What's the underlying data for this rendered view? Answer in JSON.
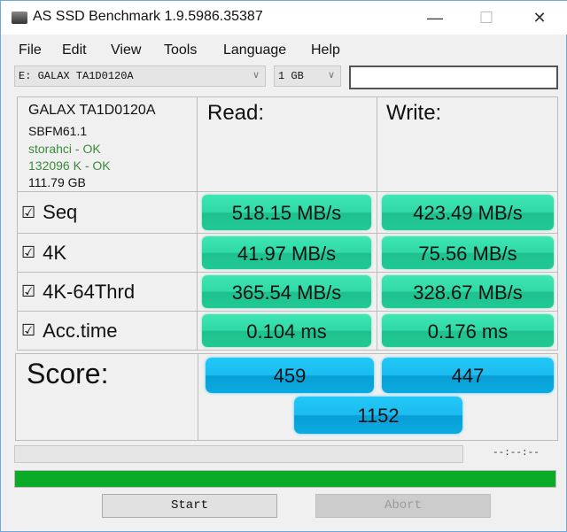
{
  "window": {
    "title": "AS SSD Benchmark 1.9.5986.35387",
    "minimize": "—",
    "maximize": "☐",
    "close": "✕"
  },
  "menu": [
    "File",
    "Edit",
    "View",
    "Tools",
    "Language",
    "Help"
  ],
  "toolbar": {
    "drive": "E: GALAX TA1D0120A",
    "size": "1 GB",
    "text": ""
  },
  "info": {
    "model": "GALAX TA1D0120A",
    "firmware": "SBFM61.1",
    "driver": "storahci - OK",
    "alignment": "132096 K - OK",
    "capacity": "111.79 GB"
  },
  "headers": {
    "read": "Read:",
    "write": "Write:"
  },
  "rows": [
    {
      "label": "Seq",
      "checked": true,
      "read": "518.15 MB/s",
      "write": "423.49 MB/s"
    },
    {
      "label": "4K",
      "checked": true,
      "read": "41.97 MB/s",
      "write": "75.56 MB/s"
    },
    {
      "label": "4K-64Thrd",
      "checked": true,
      "read": "365.54 MB/s",
      "write": "328.67 MB/s"
    },
    {
      "label": "Acc.time",
      "checked": true,
      "read": "0.104 ms",
      "write": "0.176 ms"
    }
  ],
  "checkbox_glyph": "☑",
  "score": {
    "label": "Score:",
    "read": "459",
    "write": "447",
    "total": "1152"
  },
  "progress": {
    "time": "--:--:--",
    "top_percent": 0,
    "bottom_percent": 100,
    "bottom_color": "#0aab26"
  },
  "buttons": {
    "start": "Start",
    "abort": "Abort"
  }
}
